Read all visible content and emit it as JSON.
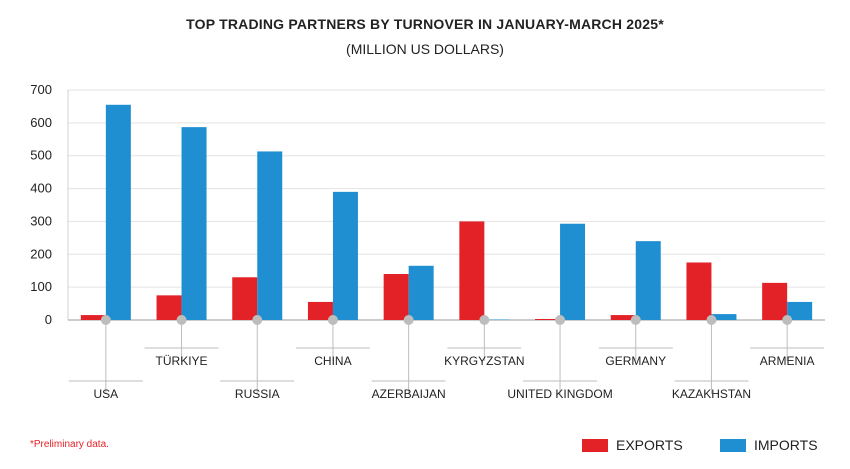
{
  "chart_data": {
    "type": "bar",
    "title": "TOP TRADING PARTNERS BY TURNOVER IN JANUARY-MARCH 2025*",
    "subtitle": "(MILLION US DOLLARS)",
    "categories": [
      "USA",
      "TÜRKIYE",
      "RUSSIA",
      "CHINA",
      "AZERBAIJAN",
      "KYRGYZSTAN",
      "UNITED KINGDOM",
      "GERMANY",
      "KAZAKHSTAN",
      "ARMENIA"
    ],
    "series": [
      {
        "name": "EXPORTS",
        "color": "#e32227",
        "values": [
          15,
          75,
          130,
          55,
          140,
          300,
          3,
          15,
          175,
          113
        ]
      },
      {
        "name": "IMPORTS",
        "color": "#1f8fd2",
        "values": [
          655,
          587,
          513,
          390,
          165,
          0,
          293,
          240,
          18,
          55
        ]
      }
    ],
    "yticks": [
      0,
      100,
      200,
      300,
      400,
      500,
      600,
      700
    ],
    "ylim": [
      0,
      700
    ],
    "grid": true,
    "legend_position": "bottom-right",
    "note": "*Preliminary data."
  }
}
